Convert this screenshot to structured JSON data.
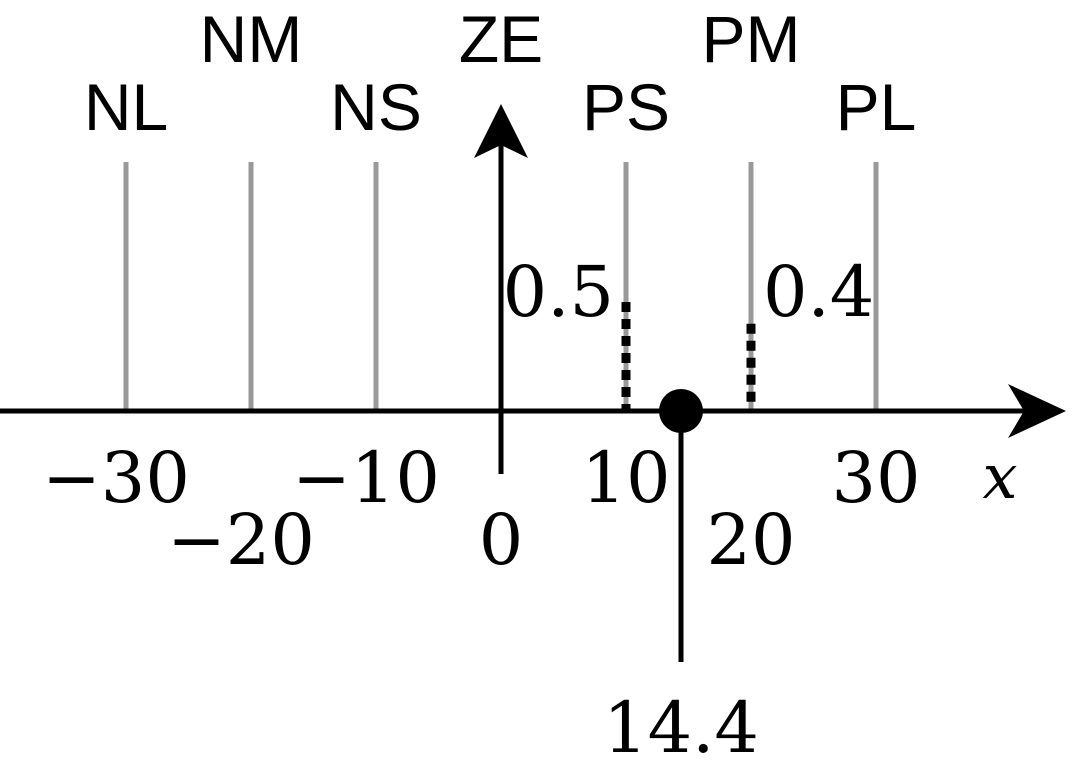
{
  "diagram": {
    "set_lines": [
      {
        "label": "NL",
        "x": -30
      },
      {
        "label": "NM",
        "x": -20
      },
      {
        "label": "NS",
        "x": -10
      },
      {
        "label": "ZE",
        "x": 0
      },
      {
        "label": "PS",
        "x": 10
      },
      {
        "label": "PM",
        "x": 20
      },
      {
        "label": "PL",
        "x": 30
      }
    ],
    "tick_labels": [
      {
        "text": "−30",
        "x": -30
      },
      {
        "text": "−20",
        "x": -20
      },
      {
        "text": "−10",
        "x": -10
      },
      {
        "text": "0",
        "x": 0
      },
      {
        "text": "10",
        "x": 10
      },
      {
        "text": "20",
        "x": 20
      },
      {
        "text": "30",
        "x": 30
      }
    ],
    "axis_label": "x",
    "input_point": {
      "value": 14.4,
      "label": "14.4"
    },
    "memberships": [
      {
        "set": "PS",
        "at": 10,
        "degree": 0.5,
        "label": "0.5"
      },
      {
        "set": "PM",
        "at": 20,
        "degree": 0.4,
        "label": "0.4"
      }
    ],
    "colors": {
      "axis": "#000000",
      "set_line": "#999999"
    }
  }
}
